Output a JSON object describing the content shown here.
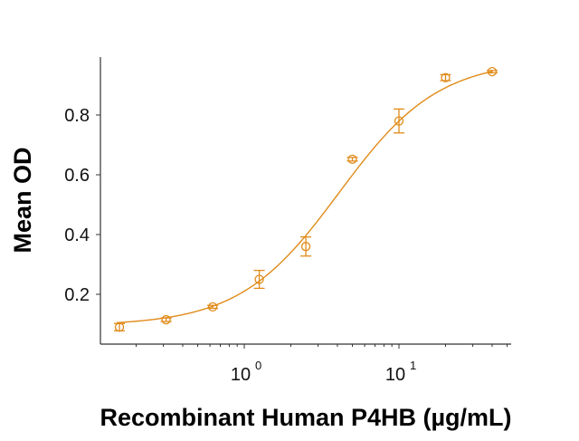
{
  "chart_data": {
    "type": "scatter",
    "title": "",
    "xlabel": "Recombinant Human P4HB (µg/mL)",
    "ylabel": "Mean OD",
    "xscale": "log",
    "xlim": [
      0.12,
      50
    ],
    "ylim": [
      0.035,
      1.0
    ],
    "x_ticks": [
      {
        "value": 1,
        "label_base": "10",
        "label_exp": "0"
      },
      {
        "value": 10,
        "label_base": "10",
        "label_exp": "1"
      }
    ],
    "y_ticks": [
      {
        "value": 0.2,
        "label": "0.2"
      },
      {
        "value": 0.4,
        "label": "0.4"
      },
      {
        "value": 0.6,
        "label": "0.6"
      },
      {
        "value": 0.8,
        "label": "0.8"
      }
    ],
    "grid": false,
    "legend": null,
    "color": "#E08B1A",
    "series": [
      {
        "name": "P4HB",
        "marker": "open-circle",
        "x": [
          0.156,
          0.3125,
          0.625,
          1.25,
          2.5,
          5,
          10,
          20,
          40
        ],
        "y": [
          0.09,
          0.115,
          0.158,
          0.25,
          0.36,
          0.652,
          0.78,
          0.925,
          0.945
        ],
        "error": [
          0.012,
          0.006,
          0.005,
          0.03,
          0.032,
          0.006,
          0.04,
          0.01,
          0.004
        ]
      }
    ],
    "fit": {
      "type": "4PL",
      "bottom": 0.095,
      "top": 0.985,
      "ec50": 4.1,
      "hill": 1.35
    }
  }
}
